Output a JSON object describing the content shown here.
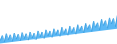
{
  "chart_data": {
    "type": "area",
    "values": [
      38,
      55,
      32,
      62,
      40,
      58,
      34,
      64,
      42,
      60,
      36,
      66,
      44,
      62,
      38,
      68,
      46,
      64,
      40,
      72,
      50,
      68,
      44,
      76,
      54,
      72,
      48,
      80,
      58,
      76,
      52,
      86,
      62,
      80,
      56,
      90,
      66,
      85,
      60,
      95,
      72,
      90,
      65,
      100,
      78,
      95,
      70,
      108,
      85,
      102,
      76,
      115,
      92,
      110,
      82,
      120,
      98,
      118,
      88,
      130
    ],
    "baseline": [
      24.16,
      25.0736,
      25.9871,
      26.9007,
      27.8142,
      28.7278,
      29.6414,
      30.5549,
      31.4685,
      32.382,
      33.2956,
      34.2092,
      35.1227,
      36.0363,
      36.9498,
      37.8634,
      38.7769,
      39.6905,
      40.6041,
      41.5176,
      42.4312,
      43.3447,
      44.2583,
      45.1719,
      46.0854,
      46.999,
      47.9125,
      48.8261,
      49.7397,
      50.6532,
      51.5668,
      52.4803,
      53.3939,
      54.3075,
      55.221,
      56.1346,
      57.0481,
      57.9617,
      58.8753,
      59.7888,
      60.7024,
      61.6159,
      62.5295,
      63.4431,
      64.3566,
      65.2702,
      66.1837,
      67.0973,
      68.0108,
      68.9244,
      69.838,
      70.7515,
      71.6651,
      72.5786,
      73.4922,
      74.4058,
      75.3193,
      76.2329,
      77.1464,
      78.06
    ],
    "colors": [
      "#5bb8f5",
      "#3a9de0"
    ],
    "ylim": [
      22.2,
      183.9
    ],
    "tick_labels": false
  }
}
